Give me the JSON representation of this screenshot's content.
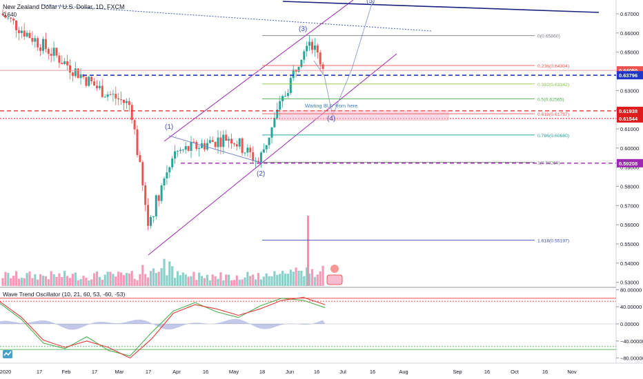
{
  "header": {
    "title": "New Zealand Dollar / U.S. Dollar, 1D, FXCM",
    "ohlc_stub": "0.640"
  },
  "price_axis": {
    "ticks": [
      0.67,
      0.66,
      0.65,
      0.64,
      0.63,
      0.62,
      0.61,
      0.6,
      0.59,
      0.58,
      0.57,
      0.56,
      0.55,
      0.54,
      0.53
    ],
    "labels": [
      "0.67000",
      "0.66000",
      "0.65000",
      "0.64000",
      "0.63000",
      "0.62000",
      "0.61000",
      "0.60000",
      "0.59000",
      "0.58000",
      "0.57000",
      "0.56000",
      "0.55000",
      "0.54000",
      "0.53000"
    ],
    "badges": [
      {
        "label": "0.64050",
        "value": 0.6405,
        "color": "#ef5350"
      },
      {
        "label": "0.63796",
        "value": 0.63796,
        "color": "#1e35c7"
      },
      {
        "label": "0.61938",
        "value": 0.61938,
        "color": "#e01b1b"
      },
      {
        "label": "0.61544",
        "value": 0.61544,
        "color": "#e01b1b"
      },
      {
        "label": "0.59208",
        "value": 0.59208,
        "color": "#9c27b0"
      }
    ]
  },
  "time_axis": {
    "labels": [
      "2020",
      "17",
      "Feb",
      "17",
      "Mar",
      "17",
      "Apr",
      "16",
      "May",
      "18",
      "Jun",
      "16",
      "Jul",
      "16",
      "Aug",
      "Sep",
      "16",
      "Oct",
      "16",
      "Nov"
    ]
  },
  "fibonacci": [
    {
      "label": "0(0.65860)",
      "value": 0.6586,
      "color": "#787b86"
    },
    {
      "label": "0.236(0.64304)",
      "value": 0.64304,
      "color": "#ef5350"
    },
    {
      "label": "0.382(0.63342)",
      "value": 0.63342,
      "color": "#8bc34a"
    },
    {
      "label": "0.5(0.62565)",
      "value": 0.62565,
      "color": "#4caf50"
    },
    {
      "label": "0.618(0.61787)",
      "value": 0.61787,
      "color": "#ef5350"
    },
    {
      "label": "0.786(0.60680)",
      "value": 0.6068,
      "color": "#26a69a"
    },
    {
      "label": "1(0.59260)",
      "value": 0.5926,
      "color": "#787b86"
    },
    {
      "label": "1.618(0.55197)",
      "value": 0.55197,
      "color": "#3f51b5"
    }
  ],
  "waves": [
    {
      "label": "(1)",
      "color": "#3f51b5"
    },
    {
      "label": "(2)",
      "color": "#3f51b5"
    },
    {
      "label": "(3)",
      "color": "#3f51b5"
    },
    {
      "label": "(4)",
      "color": "#3f51b5"
    },
    {
      "label": "(5)",
      "color": "#3f51b5"
    }
  ],
  "annotations": {
    "buy_zone_text": "Waiting BUY from here"
  },
  "oscillator": {
    "title": "Wave Trend Oscillator (10, 21, 60, 53, -60, -53)",
    "ticks": [
      80,
      40,
      0,
      -40,
      -80
    ],
    "labels": [
      "80.00000",
      "40.00000",
      "0.00000",
      "−40.00000",
      "−80.00000"
    ],
    "levels": {
      "ob1": 60,
      "ob2": 53,
      "os1": -60,
      "os2": -53
    },
    "colors": {
      "wt1": "#4caf50",
      "wt2": "#e53935",
      "hist": "#7986cb",
      "ob": "#e53935",
      "os": "#4caf50"
    }
  },
  "colors": {
    "up": "#26a69a",
    "down": "#ef5350",
    "channel": "#9c27b0",
    "trend": "#1a237e"
  },
  "chart_data": {
    "type": "candlestick",
    "symbol": "NZDUSD",
    "timeframe": "1D",
    "ylim": [
      0.528,
      0.675
    ],
    "key_points": [
      {
        "date": "2020-01-01",
        "close": 0.67
      },
      {
        "date": "2020-01-31",
        "close": 0.647
      },
      {
        "date": "2020-02-21",
        "close": 0.631
      },
      {
        "date": "2020-03-09",
        "close": 0.622
      },
      {
        "date": "2020-03-18",
        "close": 0.56
      },
      {
        "date": "2020-03-31",
        "close": 0.597
      },
      {
        "date": "2020-04-30",
        "close": 0.606
      },
      {
        "date": "2020-05-15",
        "close": 0.5926
      },
      {
        "date": "2020-06-10",
        "close": 0.6586
      },
      {
        "date": "2020-06-19",
        "close": 0.6405
      }
    ],
    "oscillator_series": [
      {
        "name": "wt1",
        "key_values": [
          48,
          10,
          -45,
          -58,
          -30,
          -62,
          -75,
          -20,
          30,
          50,
          28,
          15,
          42,
          60,
          55,
          38
        ]
      },
      {
        "name": "wt2",
        "key_values": [
          52,
          15,
          -38,
          -55,
          -40,
          -55,
          -80,
          -35,
          25,
          45,
          35,
          20,
          35,
          55,
          62,
          45
        ]
      }
    ]
  }
}
